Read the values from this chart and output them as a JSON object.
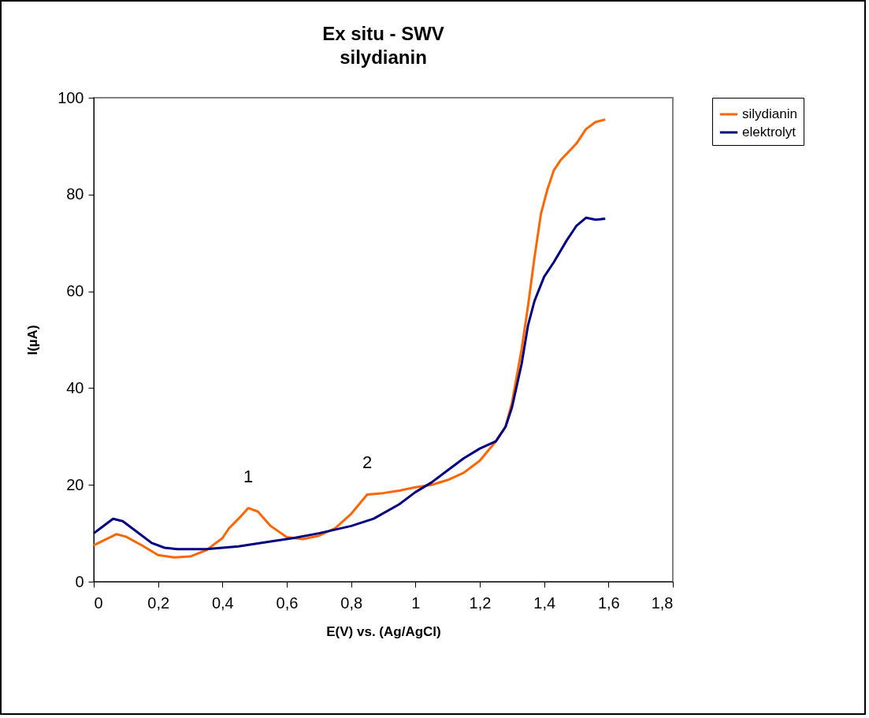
{
  "chart_data": {
    "type": "line",
    "title": "Ex situ - SWV",
    "subtitle": "silydianin",
    "xlabel": "E(V) vs. (Ag/AgCl)",
    "ylabel": "I(µA)",
    "xlim": [
      0,
      1.8
    ],
    "xticks": [
      {
        "value": 0,
        "label": "0"
      },
      {
        "value": 0.2,
        "label": "0,2"
      },
      {
        "value": 0.4,
        "label": "0,4"
      },
      {
        "value": 0.6,
        "label": "0,6"
      },
      {
        "value": 0.8,
        "label": "0,8"
      },
      {
        "value": 1,
        "label": "1"
      },
      {
        "value": 1.2,
        "label": "1,2"
      },
      {
        "value": 1.4,
        "label": "1,4"
      },
      {
        "value": 1.6,
        "label": "1,6"
      },
      {
        "value": 1.8,
        "label": "1,8"
      }
    ],
    "ylim": [
      0,
      100
    ],
    "yticks": [
      0,
      20,
      40,
      60,
      80,
      100
    ],
    "grid": false,
    "legend": "right",
    "marker": "none",
    "line_style": "solid",
    "annotations": [
      {
        "text": "1",
        "x": 0.48,
        "y": 15.2
      },
      {
        "text": "2",
        "x": 0.85,
        "y": 18
      }
    ],
    "series": [
      {
        "name": "silydianin",
        "color": "#ff6600",
        "x": [
          0,
          0.07,
          0.1,
          0.15,
          0.2,
          0.25,
          0.3,
          0.35,
          0.4,
          0.42,
          0.45,
          0.48,
          0.51,
          0.55,
          0.6,
          0.65,
          0.7,
          0.75,
          0.8,
          0.85,
          0.9,
          0.95,
          1.0,
          1.05,
          1.1,
          1.15,
          1.2,
          1.25,
          1.28,
          1.3,
          1.33,
          1.35,
          1.37,
          1.39,
          1.41,
          1.43,
          1.45,
          1.5,
          1.53,
          1.56,
          1.59
        ],
        "values": [
          7.5,
          9.8,
          9.3,
          7.5,
          5.5,
          5,
          5.2,
          6.5,
          9,
          11,
          13,
          15.2,
          14.5,
          11.5,
          9.2,
          8.8,
          9.5,
          11,
          14,
          18,
          18.3,
          18.8,
          19.5,
          20,
          21,
          22.5,
          25,
          29,
          32,
          37,
          48,
          57,
          67,
          76,
          81,
          85,
          87,
          90.5,
          93.5,
          95,
          95.5
        ]
      },
      {
        "name": "elektrolyt",
        "color": "#000080",
        "x": [
          0,
          0.02,
          0.06,
          0.09,
          0.13,
          0.18,
          0.22,
          0.26,
          0.35,
          0.45,
          0.55,
          0.62,
          0.7,
          0.8,
          0.87,
          0.95,
          1.0,
          1.05,
          1.1,
          1.15,
          1.2,
          1.25,
          1.28,
          1.3,
          1.33,
          1.35,
          1.37,
          1.4,
          1.43,
          1.47,
          1.5,
          1.53,
          1.56,
          1.59
        ],
        "values": [
          10,
          11,
          13,
          12.5,
          10.5,
          8,
          7,
          6.7,
          6.7,
          7.3,
          8.3,
          9,
          10,
          11.5,
          13,
          16,
          18.5,
          20.5,
          23,
          25.5,
          27.5,
          29,
          32,
          36,
          45,
          53,
          58,
          63,
          66,
          70.5,
          73.5,
          75.2,
          74.8,
          75
        ]
      }
    ]
  }
}
